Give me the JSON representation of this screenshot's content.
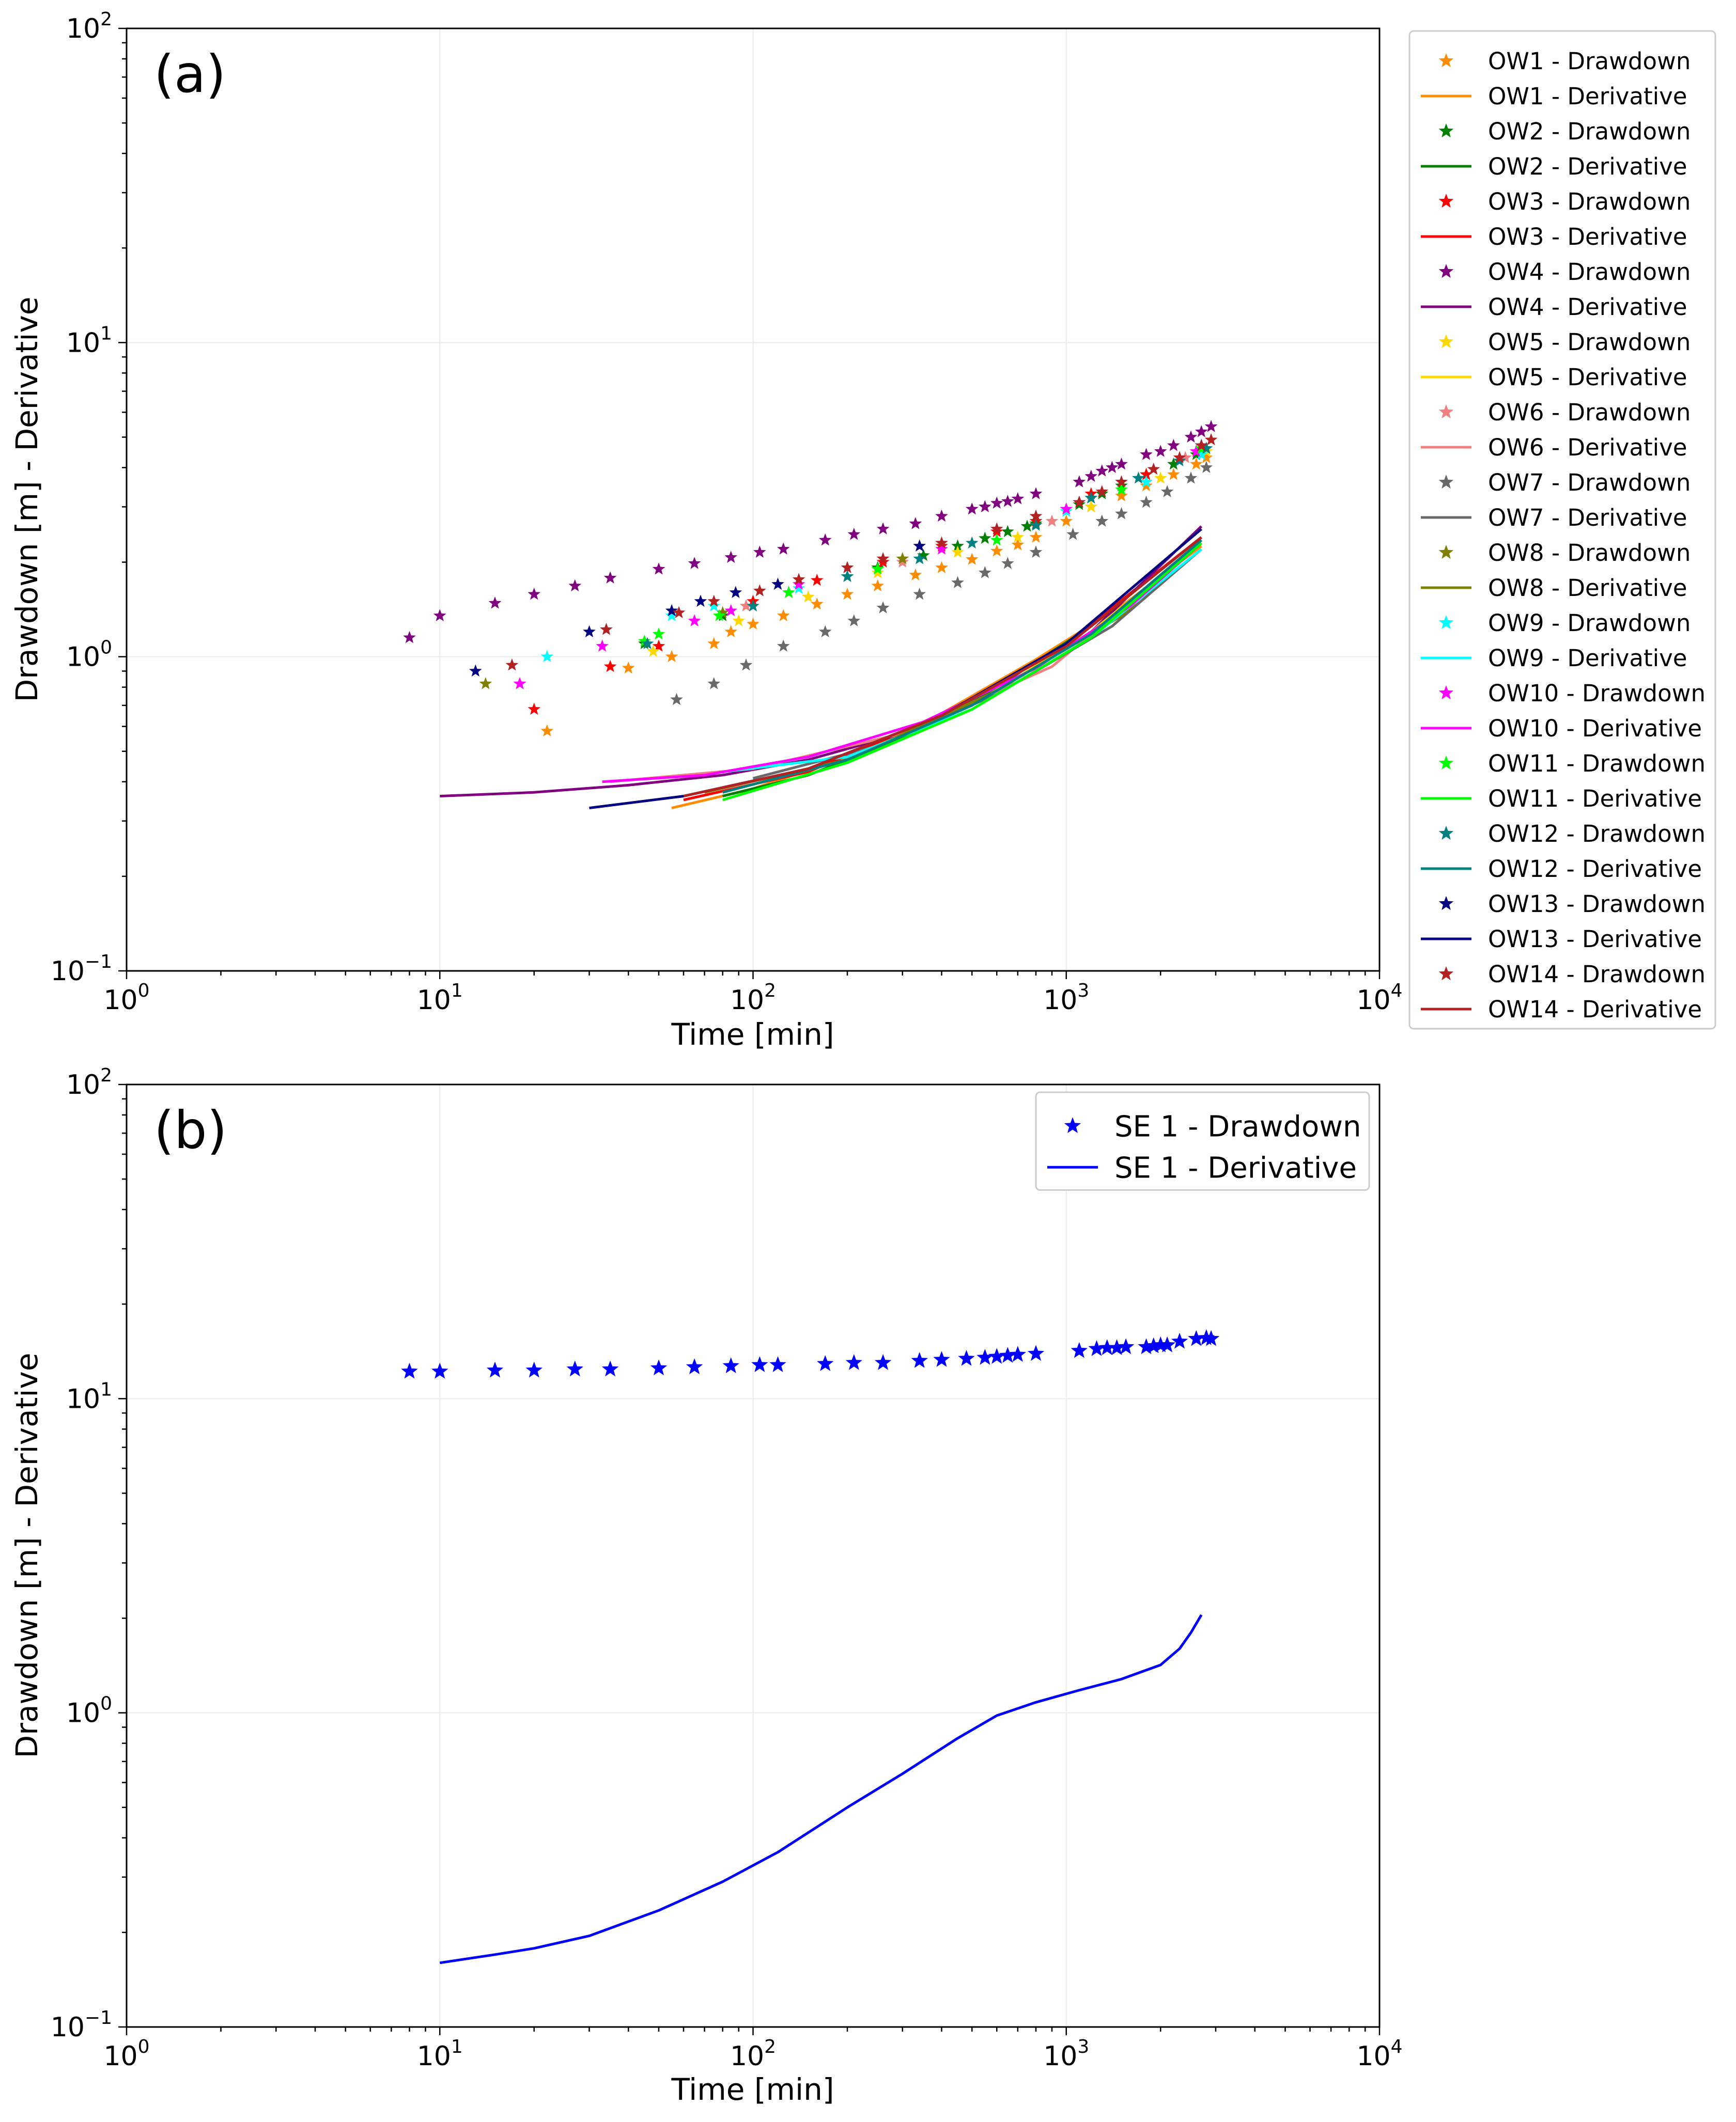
{
  "chart_data": [
    {
      "type": "scatter",
      "panel_label": "(a)",
      "xlabel": "Time [min]",
      "ylabel": "Drawdown [m] - Derivative",
      "xscale": "log",
      "yscale": "log",
      "xlim": [
        1,
        10000
      ],
      "ylim": [
        0.1,
        100
      ],
      "grid": true,
      "legend_position": "outside-right",
      "x_tick_labels": [
        {
          "base": "10",
          "exp": "0"
        },
        {
          "base": "10",
          "exp": "1"
        },
        {
          "base": "10",
          "exp": "2"
        },
        {
          "base": "10",
          "exp": "3"
        },
        {
          "base": "10",
          "exp": "4"
        }
      ],
      "y_tick_labels": [
        {
          "base": "10",
          "exp": "−1"
        },
        {
          "base": "10",
          "exp": "0"
        },
        {
          "base": "10",
          "exp": "1"
        },
        {
          "base": "10",
          "exp": "2"
        }
      ],
      "series": [
        {
          "name": "OW1 - Drawdown",
          "kind": "marker",
          "color": "#ff8c00",
          "x": [
            22,
            40,
            55,
            75,
            85,
            100,
            125,
            160,
            200,
            250,
            330,
            400,
            500,
            600,
            700,
            800,
            1000,
            1200,
            1500,
            1800,
            2200,
            2600,
            2800
          ],
          "y": [
            0.58,
            0.92,
            1.0,
            1.1,
            1.2,
            1.27,
            1.35,
            1.47,
            1.58,
            1.68,
            1.82,
            1.92,
            2.04,
            2.17,
            2.27,
            2.4,
            2.7,
            3.0,
            3.25,
            3.5,
            3.8,
            4.1,
            4.3
          ]
        },
        {
          "name": "OW1 - Derivative",
          "kind": "line",
          "color": "#ff8c00",
          "x": [
            55,
            100,
            200,
            400,
            800,
            1500,
            2700
          ],
          "y": [
            0.33,
            0.38,
            0.48,
            0.66,
            0.98,
            1.45,
            2.25
          ]
        },
        {
          "name": "OW2 - Drawdown",
          "kind": "marker",
          "color": "#008000",
          "x": [
            45,
            80,
            130,
            200,
            250,
            350,
            450,
            550,
            650,
            750,
            800,
            1100,
            1300,
            1500,
            1800,
            2200,
            2600,
            2800
          ],
          "y": [
            1.1,
            1.35,
            1.6,
            1.8,
            1.92,
            2.1,
            2.25,
            2.38,
            2.5,
            2.6,
            2.65,
            3.05,
            3.3,
            3.5,
            3.8,
            4.1,
            4.4,
            4.6
          ]
        },
        {
          "name": "OW2 - Derivative",
          "kind": "line",
          "color": "#008000",
          "x": [
            80,
            150,
            300,
            600,
            1200,
            2700
          ],
          "y": [
            0.36,
            0.42,
            0.55,
            0.8,
            1.25,
            2.4
          ]
        },
        {
          "name": "OW3 - Drawdown",
          "kind": "marker",
          "color": "#ff0000",
          "x": [
            20,
            35,
            50,
            100,
            160,
            260,
            400,
            600,
            800,
            1200,
            1800,
            2600
          ],
          "y": [
            0.68,
            0.93,
            1.08,
            1.5,
            1.75,
            2.0,
            2.25,
            2.5,
            2.7,
            3.3,
            3.8,
            4.5
          ]
        },
        {
          "name": "OW3 - Derivative",
          "kind": "line",
          "color": "#ff0000",
          "x": [
            60,
            150,
            400,
            1000,
            2700
          ],
          "y": [
            0.35,
            0.43,
            0.65,
            1.1,
            2.4
          ]
        },
        {
          "name": "OW4 - Drawdown",
          "kind": "marker",
          "color": "#800080",
          "x": [
            8,
            10,
            15,
            20,
            27,
            35,
            50,
            65,
            85,
            105,
            125,
            170,
            210,
            260,
            330,
            400,
            500,
            550,
            600,
            650,
            700,
            800,
            1100,
            1200,
            1300,
            1400,
            1500,
            1800,
            2000,
            2200,
            2500,
            2700,
            2900
          ],
          "y": [
            1.15,
            1.35,
            1.48,
            1.58,
            1.68,
            1.78,
            1.9,
            1.98,
            2.07,
            2.15,
            2.2,
            2.35,
            2.45,
            2.55,
            2.65,
            2.8,
            2.95,
            3.0,
            3.08,
            3.12,
            3.18,
            3.3,
            3.6,
            3.75,
            3.9,
            4.0,
            4.1,
            4.4,
            4.5,
            4.7,
            5.0,
            5.2,
            5.4
          ]
        },
        {
          "name": "OW4 - Derivative",
          "kind": "line",
          "color": "#800080",
          "x": [
            10,
            20,
            40,
            80,
            150,
            300,
            600,
            1200,
            2700
          ],
          "y": [
            0.36,
            0.37,
            0.39,
            0.42,
            0.47,
            0.57,
            0.78,
            1.2,
            2.6
          ]
        },
        {
          "name": "OW5 - Drawdown",
          "kind": "marker",
          "color": "#ffd700",
          "x": [
            48,
            90,
            150,
            250,
            450,
            700,
            1200,
            2000,
            2800
          ],
          "y": [
            1.04,
            1.3,
            1.55,
            1.85,
            2.15,
            2.4,
            3.0,
            3.7,
            4.5
          ]
        },
        {
          "name": "OW5 - Derivative",
          "kind": "line",
          "color": "#ffd700",
          "x": [
            80,
            200,
            500,
            1200,
            2700
          ],
          "y": [
            0.37,
            0.47,
            0.7,
            1.2,
            2.3
          ]
        },
        {
          "name": "OW6 - Drawdown",
          "kind": "marker",
          "color": "#f08080",
          "x": [
            18,
            95,
            300,
            900,
            2400
          ],
          "y": [
            0.82,
            1.45,
            2.0,
            2.7,
            4.3
          ]
        },
        {
          "name": "OW6 - Derivative",
          "kind": "line",
          "color": "#f08080",
          "x": [
            35,
            100,
            300,
            900,
            2700
          ],
          "y": [
            0.4,
            0.44,
            0.57,
            0.93,
            2.3
          ]
        },
        {
          "name": "OW7 - Drawdown",
          "kind": "marker",
          "color": "#696969",
          "x": [
            57,
            75,
            95,
            125,
            170,
            210,
            260,
            340,
            450,
            550,
            650,
            800,
            1050,
            1300,
            1500,
            1800,
            2100,
            2500,
            2800
          ],
          "y": [
            0.73,
            0.82,
            0.94,
            1.08,
            1.2,
            1.3,
            1.43,
            1.58,
            1.72,
            1.85,
            1.98,
            2.15,
            2.45,
            2.7,
            2.85,
            3.1,
            3.35,
            3.7,
            4.0
          ]
        },
        {
          "name": "OW7 - Derivative",
          "kind": "line",
          "color": "#696969",
          "x": [
            100,
            250,
            600,
            1400,
            2700
          ],
          "y": [
            0.41,
            0.52,
            0.76,
            1.25,
            2.2
          ]
        },
        {
          "name": "OW8 - Drawdown",
          "kind": "marker",
          "color": "#808000",
          "x": [
            14,
            80,
            300,
            1200,
            2700
          ],
          "y": [
            0.82,
            1.38,
            2.05,
            3.2,
            4.6
          ]
        },
        {
          "name": "OW8 - Derivative",
          "kind": "line",
          "color": "#808000",
          "x": [
            70,
            200,
            600,
            1500,
            2700
          ],
          "y": [
            0.37,
            0.47,
            0.78,
            1.35,
            2.35
          ]
        },
        {
          "name": "OW9 - Drawdown",
          "kind": "marker",
          "color": "#00ffff",
          "x": [
            22,
            55,
            75,
            140,
            400,
            1000,
            1800,
            2700
          ],
          "y": [
            1.0,
            1.35,
            1.45,
            1.65,
            2.3,
            2.9,
            3.6,
            4.4
          ]
        },
        {
          "name": "OW9 - Derivative",
          "kind": "line",
          "color": "#00ffff",
          "x": [
            80,
            200,
            500,
            1200,
            2700
          ],
          "y": [
            0.43,
            0.48,
            0.68,
            1.15,
            2.2
          ]
        },
        {
          "name": "OW10 - Drawdown",
          "kind": "marker",
          "color": "#ff00ff",
          "x": [
            18,
            33,
            65,
            85,
            140,
            400,
            1000,
            2600
          ],
          "y": [
            0.82,
            1.08,
            1.3,
            1.4,
            1.7,
            2.2,
            2.95,
            4.5
          ]
        },
        {
          "name": "OW10 - Derivative",
          "kind": "line",
          "color": "#ff00ff",
          "x": [
            33,
            70,
            150,
            350,
            800,
            1600,
            2700
          ],
          "y": [
            0.4,
            0.42,
            0.48,
            0.62,
            0.92,
            1.45,
            2.3
          ]
        },
        {
          "name": "OW11 - Drawdown",
          "kind": "marker",
          "color": "#00ff00",
          "x": [
            45,
            50,
            78,
            130,
            250,
            600,
            1500,
            2700
          ],
          "y": [
            1.12,
            1.18,
            1.35,
            1.6,
            1.9,
            2.35,
            3.4,
            4.6
          ]
        },
        {
          "name": "OW11 - Derivative",
          "kind": "line",
          "color": "#00ff00",
          "x": [
            80,
            200,
            500,
            1200,
            2700
          ],
          "y": [
            0.35,
            0.46,
            0.68,
            1.15,
            2.3
          ]
        },
        {
          "name": "OW12 - Drawdown",
          "kind": "marker",
          "color": "#008080",
          "x": [
            46,
            100,
            200,
            340,
            500,
            800,
            1200,
            1700,
            2300,
            2800
          ],
          "y": [
            1.1,
            1.45,
            1.8,
            2.05,
            2.3,
            2.62,
            3.2,
            3.7,
            4.2,
            4.6
          ]
        },
        {
          "name": "OW12 - Derivative",
          "kind": "line",
          "color": "#008080",
          "x": [
            80,
            200,
            500,
            1200,
            2700
          ],
          "y": [
            0.37,
            0.47,
            0.7,
            1.18,
            2.35
          ]
        },
        {
          "name": "OW13 - Drawdown",
          "kind": "marker",
          "color": "#000080",
          "x": [
            13,
            30,
            55,
            68,
            88,
            120,
            340,
            1100,
            2700
          ],
          "y": [
            0.9,
            1.2,
            1.4,
            1.5,
            1.6,
            1.7,
            2.25,
            3.1,
            4.7
          ]
        },
        {
          "name": "OW13 - Derivative",
          "kind": "line",
          "color": "#000080",
          "x": [
            30,
            60,
            150,
            400,
            1000,
            2700
          ],
          "y": [
            0.33,
            0.36,
            0.44,
            0.65,
            1.1,
            2.55
          ]
        },
        {
          "name": "OW14 - Drawdown",
          "kind": "marker",
          "color": "#b22222",
          "x": [
            17,
            34,
            58,
            75,
            105,
            140,
            200,
            260,
            400,
            600,
            800,
            1100,
            1300,
            1500,
            1900,
            2300,
            2700,
            2900
          ],
          "y": [
            0.94,
            1.22,
            1.38,
            1.5,
            1.62,
            1.76,
            1.92,
            2.05,
            2.3,
            2.55,
            2.8,
            3.1,
            3.35,
            3.6,
            3.95,
            4.3,
            4.7,
            4.9
          ]
        },
        {
          "name": "OW14 - Derivative",
          "kind": "line",
          "color": "#b22222",
          "x": [
            60,
            150,
            400,
            1000,
            2700
          ],
          "y": [
            0.36,
            0.44,
            0.65,
            1.08,
            2.4
          ]
        }
      ]
    },
    {
      "type": "scatter",
      "panel_label": "(b)",
      "xlabel": "Time [min]",
      "ylabel": "Drawdown [m] - Derivative",
      "xscale": "log",
      "yscale": "log",
      "xlim": [
        1,
        10000
      ],
      "ylim": [
        0.1,
        100
      ],
      "grid": true,
      "legend_position": "top-right",
      "x_tick_labels": [
        {
          "base": "10",
          "exp": "0"
        },
        {
          "base": "10",
          "exp": "1"
        },
        {
          "base": "10",
          "exp": "2"
        },
        {
          "base": "10",
          "exp": "3"
        },
        {
          "base": "10",
          "exp": "4"
        }
      ],
      "y_tick_labels": [
        {
          "base": "10",
          "exp": "−1"
        },
        {
          "base": "10",
          "exp": "0"
        },
        {
          "base": "10",
          "exp": "1"
        },
        {
          "base": "10",
          "exp": "2"
        }
      ],
      "series": [
        {
          "name": "SE 1 - Drawdown",
          "kind": "marker",
          "color": "#0000ff",
          "x": [
            8,
            10,
            15,
            20,
            27,
            35,
            50,
            65,
            85,
            105,
            120,
            170,
            210,
            260,
            340,
            400,
            480,
            550,
            600,
            650,
            700,
            800,
            1100,
            1250,
            1350,
            1450,
            1550,
            1800,
            1900,
            2000,
            2100,
            2300,
            2600,
            2800,
            2900
          ],
          "y": [
            12.2,
            12.2,
            12.3,
            12.3,
            12.4,
            12.4,
            12.5,
            12.6,
            12.7,
            12.8,
            12.8,
            12.9,
            13.0,
            13.0,
            13.2,
            13.3,
            13.4,
            13.5,
            13.6,
            13.7,
            13.8,
            13.9,
            14.2,
            14.4,
            14.5,
            14.5,
            14.6,
            14.6,
            14.7,
            14.8,
            14.8,
            15.2,
            15.5,
            15.6,
            15.5
          ]
        },
        {
          "name": "SE 1 - Derivative",
          "kind": "line",
          "color": "#0000ff",
          "x": [
            10,
            15,
            20,
            30,
            50,
            80,
            120,
            200,
            300,
            450,
            600,
            800,
            1100,
            1500,
            2000,
            2300,
            2500,
            2700
          ],
          "y": [
            0.16,
            0.17,
            0.178,
            0.195,
            0.235,
            0.29,
            0.36,
            0.5,
            0.64,
            0.83,
            0.98,
            1.08,
            1.18,
            1.28,
            1.42,
            1.6,
            1.8,
            2.05
          ]
        }
      ]
    }
  ]
}
